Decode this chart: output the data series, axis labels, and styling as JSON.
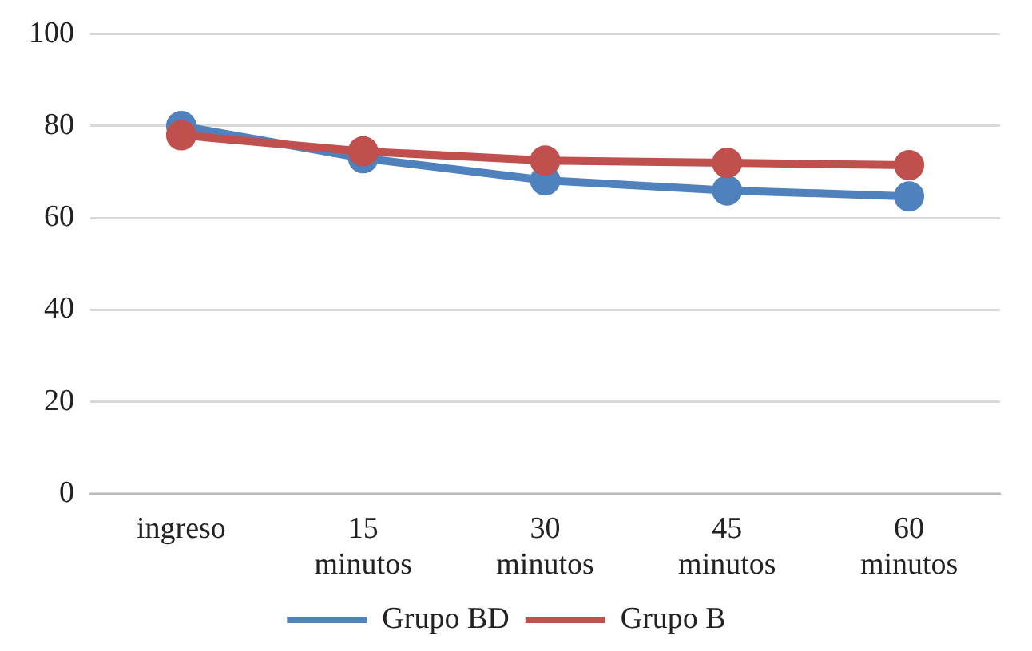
{
  "chart_data": {
    "type": "line",
    "categories": [
      "ingreso",
      "15 minutos",
      "30 minutos",
      "45 minutos",
      "60 minutos"
    ],
    "series": [
      {
        "name": "Grupo BD",
        "color": "#4f81bd",
        "values": [
          80,
          73,
          68.2,
          66,
          64.7
        ]
      },
      {
        "name": "Grupo B",
        "color": "#c0504d",
        "values": [
          78,
          74.5,
          72.5,
          72,
          71.5
        ]
      }
    ],
    "ylim": [
      0,
      100
    ],
    "yticks": [
      0,
      20,
      40,
      60,
      80,
      100
    ],
    "grid": "y",
    "legend": "bottom",
    "marker": "circle",
    "line_style": "solid"
  }
}
